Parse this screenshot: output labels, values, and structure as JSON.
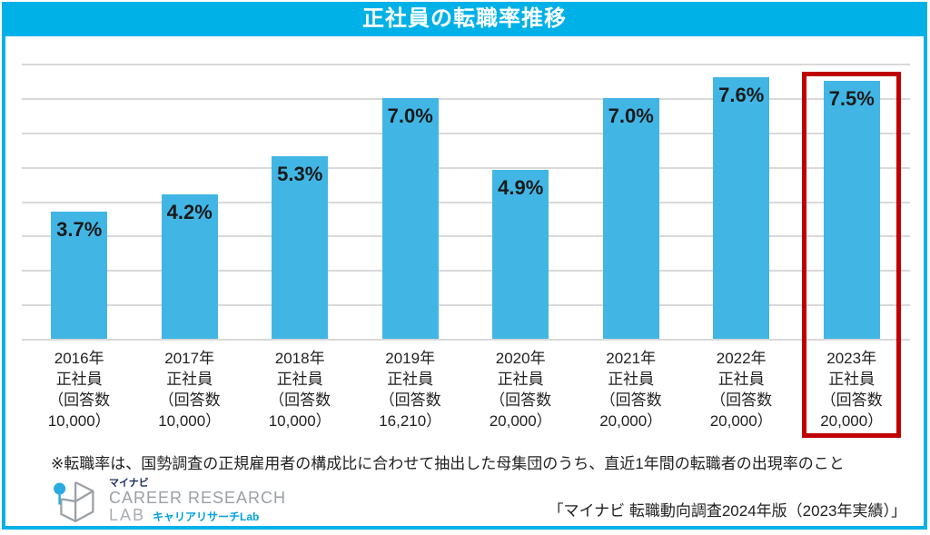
{
  "title": "正社員の転職率推移",
  "colors": {
    "accent_cyan": "#00b1e8",
    "bar_blue": "#41b6e5",
    "grid_gray": "#d9d9d9",
    "highlight_red": "#c00000",
    "text_dark": "#1a1a1a"
  },
  "footnote": "※転職率は、国勢調査の正規雇用者の構成比に合わせて抽出した母集団のうち、直近1年間の転職者の出現率のこと",
  "source_caption": "「マイナビ 転職動向調査2024年版（2023年実績）」",
  "logo": {
    "mark_icon": "cube-wireframe-pin-logo",
    "brand_jp": "マイナビ",
    "name_line1": "CAREER RESEARCH",
    "name_line2": "LAB",
    "name_jp": "キャリアリサーチLab"
  },
  "chart_data": {
    "type": "bar",
    "title": "正社員の転職率推移",
    "unit": "%",
    "categories": [
      [
        "2016年",
        "正社員",
        "（回答数",
        "10,000）"
      ],
      [
        "2017年",
        "正社員",
        "（回答数",
        "10,000）"
      ],
      [
        "2018年",
        "正社員",
        "（回答数",
        "10,000）"
      ],
      [
        "2019年",
        "正社員",
        "（回答数",
        "16,210）"
      ],
      [
        "2020年",
        "正社員",
        "（回答数",
        "20,000）"
      ],
      [
        "2021年",
        "正社員",
        "（回答数",
        "20,000）"
      ],
      [
        "2022年",
        "正社員",
        "（回答数",
        "20,000）"
      ],
      [
        "2023年",
        "正社員",
        "（回答数",
        "20,000）"
      ]
    ],
    "values": [
      3.7,
      4.2,
      5.3,
      7.0,
      4.9,
      7.0,
      7.6,
      7.5
    ],
    "bar_labels": [
      "3.7%",
      "4.2%",
      "5.3%",
      "7.0%",
      "4.9%",
      "7.0%",
      "7.6%",
      "7.5%"
    ],
    "xlabel": "",
    "ylabel": "",
    "ylim": [
      0,
      8
    ],
    "grid_step": 1,
    "grid": true,
    "legend": false,
    "highlight_index": 7,
    "highlight_style": "red-box"
  }
}
